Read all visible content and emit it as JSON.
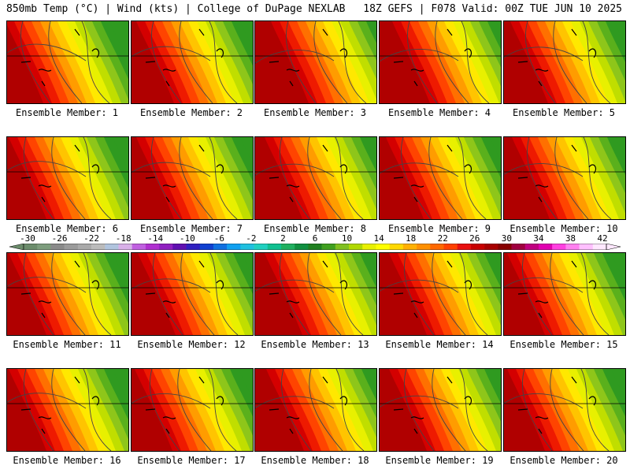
{
  "header": {
    "left": "850mb Temp (°C) | Wind (kts) | College of DuPage NEXLAB",
    "right": "18Z GEFS | F078 Valid: 00Z TUE JUN 10 2025"
  },
  "caption_prefix": "Ensemble Member: ",
  "members": [
    {
      "label": "Ensemble Member: 1",
      "warm_shift": 0
    },
    {
      "label": "Ensemble Member: 2",
      "warm_shift": 8
    },
    {
      "label": "Ensemble Member: 3",
      "warm_shift": 22
    },
    {
      "label": "Ensemble Member: 4",
      "warm_shift": 18
    },
    {
      "label": "Ensemble Member: 5",
      "warm_shift": 10
    },
    {
      "label": "Ensemble Member: 6",
      "warm_shift": 4
    },
    {
      "label": "Ensemble Member: 7",
      "warm_shift": 8
    },
    {
      "label": "Ensemble Member: 8",
      "warm_shift": 14
    },
    {
      "label": "Ensemble Member: 9",
      "warm_shift": 10
    },
    {
      "label": "Ensemble Member: 10",
      "warm_shift": 12
    },
    {
      "label": "Ensemble Member: 11",
      "warm_shift": 4
    },
    {
      "label": "Ensemble Member: 12",
      "warm_shift": 10
    },
    {
      "label": "Ensemble Member: 13",
      "warm_shift": 14
    },
    {
      "label": "Ensemble Member: 14",
      "warm_shift": 14
    },
    {
      "label": "Ensemble Member: 15",
      "warm_shift": 6
    },
    {
      "label": "Ensemble Member: 16",
      "warm_shift": 4
    },
    {
      "label": "Ensemble Member: 17",
      "warm_shift": 6
    },
    {
      "label": "Ensemble Member: 18",
      "warm_shift": 16
    },
    {
      "label": "Ensemble Member: 19",
      "warm_shift": 14
    },
    {
      "label": "Ensemble Member: 20",
      "warm_shift": 6
    }
  ],
  "colorbar": {
    "ticks": [
      "-30",
      "-26",
      "-22",
      "-18",
      "-14",
      "-10",
      "-6",
      "-2",
      "2",
      "6",
      "10",
      "14",
      "18",
      "22",
      "26",
      "30",
      "34",
      "38",
      "42"
    ],
    "colors": [
      "#6b8c6b",
      "#7d9d7d",
      "#8a8a8a",
      "#9b9b9b",
      "#aaaaaa",
      "#bbbbbb",
      "#b0c4de",
      "#d8b0e8",
      "#c060e0",
      "#b030d0",
      "#9020c0",
      "#6010b0",
      "#3020c0",
      "#1040d0",
      "#1070e0",
      "#10a0f0",
      "#20c0e0",
      "#20d0c0",
      "#10c090",
      "#20b060",
      "#109040",
      "#208020",
      "#40a020",
      "#80c020",
      "#b0d800",
      "#e8f000",
      "#ffff00",
      "#ffd800",
      "#ffb000",
      "#ff9000",
      "#ff6800",
      "#ff4000",
      "#e81010",
      "#c80000",
      "#a80000",
      "#880000",
      "#a00040",
      "#c00080",
      "#e000b0",
      "#ff40e0",
      "#ff80f0",
      "#ffc0ff",
      "#ffe8ff"
    ]
  },
  "temp_palette": [
    "#b00000",
    "#d40000",
    "#ee1a00",
    "#ff4400",
    "#ff7000",
    "#ff9c00",
    "#ffc400",
    "#ffe800",
    "#e8f000",
    "#c0de00",
    "#8ec61a",
    "#5ab01c",
    "#2f9a20",
    "#1d8c2c",
    "#1f9e5a",
    "#22b48a"
  ]
}
